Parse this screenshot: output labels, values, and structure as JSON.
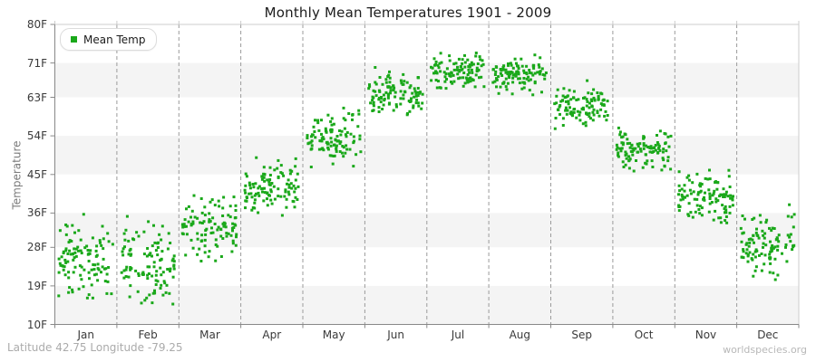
{
  "header": {
    "title": "Monthly Mean Temperatures 1901 - 2009"
  },
  "legend": {
    "label": "Mean Temp"
  },
  "y_axis": {
    "label": "Temperature"
  },
  "footer": {
    "coordinates": "Latitude 42.75 Longitude -79.25",
    "watermark": "worldspecies.org"
  },
  "colors": {
    "point": "#1aa81a",
    "band": "#f4f4f4",
    "separator": "#9b9b9b",
    "border": "#cccccc",
    "axis": "#888888"
  },
  "chart_data": {
    "type": "scatter",
    "title": "Monthly Mean Temperatures 1901 - 2009",
    "xlabel": "",
    "ylabel": "Temperature",
    "unit": "F",
    "x_categories": [
      "Jan",
      "Feb",
      "Mar",
      "Apr",
      "May",
      "Jun",
      "Jul",
      "Aug",
      "Sep",
      "Oct",
      "Nov",
      "Dec"
    ],
    "year_range": {
      "start": 1901,
      "end": 2009
    },
    "points_per_month": 109,
    "ylim": [
      10,
      80
    ],
    "y_tick_values": [
      80,
      71,
      63,
      54,
      45,
      36,
      28,
      19,
      10
    ],
    "y_tick_labels": [
      "80F",
      "71F",
      "63F",
      "54F",
      "45F",
      "36F",
      "28F",
      "19F",
      "10F"
    ],
    "legend_entries": [
      "Mean Temp"
    ],
    "legend_position": "top-left",
    "grid": "dashed vertical month separators; alternating horizontal gray bands between ticks 71-63, 54-45, 36-28, 19-10",
    "series": [
      {
        "name": "Mean Temp",
        "marker": "square",
        "color": "#1aa81a",
        "monthly_distribution_F": [
          {
            "month": "Jan",
            "mean": 24.5,
            "sd": 4.3,
            "min": 14.0,
            "max": 37.0
          },
          {
            "month": "Feb",
            "mean": 24.5,
            "sd": 4.8,
            "min": 10.5,
            "max": 36.5
          },
          {
            "month": "Mar",
            "mean": 32.5,
            "sd": 3.6,
            "min": 23.0,
            "max": 43.0
          },
          {
            "month": "Apr",
            "mean": 42.5,
            "sd": 2.8,
            "min": 34.0,
            "max": 50.5
          },
          {
            "month": "May",
            "mean": 53.5,
            "sd": 2.9,
            "min": 46.0,
            "max": 61.5
          },
          {
            "month": "Jun",
            "mean": 63.5,
            "sd": 2.4,
            "min": 57.0,
            "max": 71.5
          },
          {
            "month": "Jul",
            "mean": 69.2,
            "sd": 1.9,
            "min": 64.0,
            "max": 75.5
          },
          {
            "month": "Aug",
            "mean": 68.0,
            "sd": 1.9,
            "min": 63.0,
            "max": 73.5
          },
          {
            "month": "Sep",
            "mean": 61.0,
            "sd": 2.3,
            "min": 54.5,
            "max": 67.5
          },
          {
            "month": "Oct",
            "mean": 50.8,
            "sd": 2.6,
            "min": 43.5,
            "max": 58.5
          },
          {
            "month": "Nov",
            "mean": 39.5,
            "sd": 2.8,
            "min": 32.0,
            "max": 47.5
          },
          {
            "month": "Dec",
            "mean": 29.0,
            "sd": 3.8,
            "min": 18.5,
            "max": 38.0
          }
        ]
      }
    ]
  }
}
